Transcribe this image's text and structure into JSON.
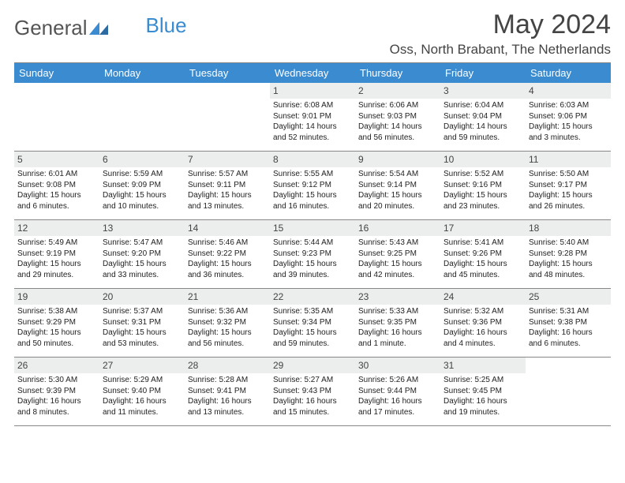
{
  "brand": {
    "part1": "General",
    "part2": "Blue"
  },
  "title": "May 2024",
  "location": "Oss, North Brabant, The Netherlands",
  "colors": {
    "header_bg": "#3a8bd0",
    "daynum_bg": "#eceded",
    "border": "#888888",
    "text": "#222222"
  },
  "weekdays": [
    "Sunday",
    "Monday",
    "Tuesday",
    "Wednesday",
    "Thursday",
    "Friday",
    "Saturday"
  ],
  "weeks": [
    [
      null,
      null,
      null,
      {
        "n": "1",
        "sr": "Sunrise: 6:08 AM",
        "ss": "Sunset: 9:01 PM",
        "d1": "Daylight: 14 hours",
        "d2": "and 52 minutes."
      },
      {
        "n": "2",
        "sr": "Sunrise: 6:06 AM",
        "ss": "Sunset: 9:03 PM",
        "d1": "Daylight: 14 hours",
        "d2": "and 56 minutes."
      },
      {
        "n": "3",
        "sr": "Sunrise: 6:04 AM",
        "ss": "Sunset: 9:04 PM",
        "d1": "Daylight: 14 hours",
        "d2": "and 59 minutes."
      },
      {
        "n": "4",
        "sr": "Sunrise: 6:03 AM",
        "ss": "Sunset: 9:06 PM",
        "d1": "Daylight: 15 hours",
        "d2": "and 3 minutes."
      }
    ],
    [
      {
        "n": "5",
        "sr": "Sunrise: 6:01 AM",
        "ss": "Sunset: 9:08 PM",
        "d1": "Daylight: 15 hours",
        "d2": "and 6 minutes."
      },
      {
        "n": "6",
        "sr": "Sunrise: 5:59 AM",
        "ss": "Sunset: 9:09 PM",
        "d1": "Daylight: 15 hours",
        "d2": "and 10 minutes."
      },
      {
        "n": "7",
        "sr": "Sunrise: 5:57 AM",
        "ss": "Sunset: 9:11 PM",
        "d1": "Daylight: 15 hours",
        "d2": "and 13 minutes."
      },
      {
        "n": "8",
        "sr": "Sunrise: 5:55 AM",
        "ss": "Sunset: 9:12 PM",
        "d1": "Daylight: 15 hours",
        "d2": "and 16 minutes."
      },
      {
        "n": "9",
        "sr": "Sunrise: 5:54 AM",
        "ss": "Sunset: 9:14 PM",
        "d1": "Daylight: 15 hours",
        "d2": "and 20 minutes."
      },
      {
        "n": "10",
        "sr": "Sunrise: 5:52 AM",
        "ss": "Sunset: 9:16 PM",
        "d1": "Daylight: 15 hours",
        "d2": "and 23 minutes."
      },
      {
        "n": "11",
        "sr": "Sunrise: 5:50 AM",
        "ss": "Sunset: 9:17 PM",
        "d1": "Daylight: 15 hours",
        "d2": "and 26 minutes."
      }
    ],
    [
      {
        "n": "12",
        "sr": "Sunrise: 5:49 AM",
        "ss": "Sunset: 9:19 PM",
        "d1": "Daylight: 15 hours",
        "d2": "and 29 minutes."
      },
      {
        "n": "13",
        "sr": "Sunrise: 5:47 AM",
        "ss": "Sunset: 9:20 PM",
        "d1": "Daylight: 15 hours",
        "d2": "and 33 minutes."
      },
      {
        "n": "14",
        "sr": "Sunrise: 5:46 AM",
        "ss": "Sunset: 9:22 PM",
        "d1": "Daylight: 15 hours",
        "d2": "and 36 minutes."
      },
      {
        "n": "15",
        "sr": "Sunrise: 5:44 AM",
        "ss": "Sunset: 9:23 PM",
        "d1": "Daylight: 15 hours",
        "d2": "and 39 minutes."
      },
      {
        "n": "16",
        "sr": "Sunrise: 5:43 AM",
        "ss": "Sunset: 9:25 PM",
        "d1": "Daylight: 15 hours",
        "d2": "and 42 minutes."
      },
      {
        "n": "17",
        "sr": "Sunrise: 5:41 AM",
        "ss": "Sunset: 9:26 PM",
        "d1": "Daylight: 15 hours",
        "d2": "and 45 minutes."
      },
      {
        "n": "18",
        "sr": "Sunrise: 5:40 AM",
        "ss": "Sunset: 9:28 PM",
        "d1": "Daylight: 15 hours",
        "d2": "and 48 minutes."
      }
    ],
    [
      {
        "n": "19",
        "sr": "Sunrise: 5:38 AM",
        "ss": "Sunset: 9:29 PM",
        "d1": "Daylight: 15 hours",
        "d2": "and 50 minutes."
      },
      {
        "n": "20",
        "sr": "Sunrise: 5:37 AM",
        "ss": "Sunset: 9:31 PM",
        "d1": "Daylight: 15 hours",
        "d2": "and 53 minutes."
      },
      {
        "n": "21",
        "sr": "Sunrise: 5:36 AM",
        "ss": "Sunset: 9:32 PM",
        "d1": "Daylight: 15 hours",
        "d2": "and 56 minutes."
      },
      {
        "n": "22",
        "sr": "Sunrise: 5:35 AM",
        "ss": "Sunset: 9:34 PM",
        "d1": "Daylight: 15 hours",
        "d2": "and 59 minutes."
      },
      {
        "n": "23",
        "sr": "Sunrise: 5:33 AM",
        "ss": "Sunset: 9:35 PM",
        "d1": "Daylight: 16 hours",
        "d2": "and 1 minute."
      },
      {
        "n": "24",
        "sr": "Sunrise: 5:32 AM",
        "ss": "Sunset: 9:36 PM",
        "d1": "Daylight: 16 hours",
        "d2": "and 4 minutes."
      },
      {
        "n": "25",
        "sr": "Sunrise: 5:31 AM",
        "ss": "Sunset: 9:38 PM",
        "d1": "Daylight: 16 hours",
        "d2": "and 6 minutes."
      }
    ],
    [
      {
        "n": "26",
        "sr": "Sunrise: 5:30 AM",
        "ss": "Sunset: 9:39 PM",
        "d1": "Daylight: 16 hours",
        "d2": "and 8 minutes."
      },
      {
        "n": "27",
        "sr": "Sunrise: 5:29 AM",
        "ss": "Sunset: 9:40 PM",
        "d1": "Daylight: 16 hours",
        "d2": "and 11 minutes."
      },
      {
        "n": "28",
        "sr": "Sunrise: 5:28 AM",
        "ss": "Sunset: 9:41 PM",
        "d1": "Daylight: 16 hours",
        "d2": "and 13 minutes."
      },
      {
        "n": "29",
        "sr": "Sunrise: 5:27 AM",
        "ss": "Sunset: 9:43 PM",
        "d1": "Daylight: 16 hours",
        "d2": "and 15 minutes."
      },
      {
        "n": "30",
        "sr": "Sunrise: 5:26 AM",
        "ss": "Sunset: 9:44 PM",
        "d1": "Daylight: 16 hours",
        "d2": "and 17 minutes."
      },
      {
        "n": "31",
        "sr": "Sunrise: 5:25 AM",
        "ss": "Sunset: 9:45 PM",
        "d1": "Daylight: 16 hours",
        "d2": "and 19 minutes."
      },
      null
    ]
  ]
}
